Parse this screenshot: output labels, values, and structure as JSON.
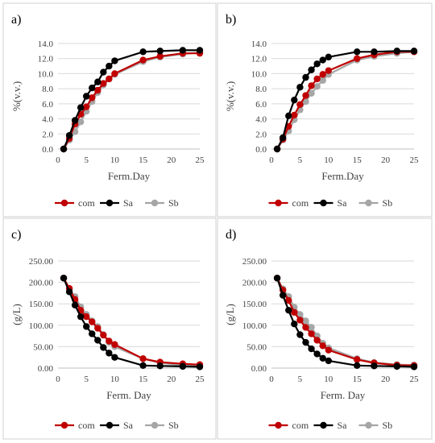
{
  "chart_data": [
    {
      "type": "line",
      "panel_label": "a)",
      "xlabel": "Ferm.Day",
      "ylabel": "%(v.v.)",
      "xlim": [
        0,
        25
      ],
      "ylim": [
        0,
        14
      ],
      "xticks": [
        0,
        5,
        10,
        15,
        20,
        25
      ],
      "yticks": [
        0,
        2,
        4,
        6,
        8,
        10,
        12,
        14
      ],
      "ytick_labels": [
        "0.0",
        "2.0",
        "4.0",
        "6.0",
        "8.0",
        "10.0",
        "12.0",
        "14.0"
      ],
      "grid": "horizontal",
      "legend": "bottom",
      "series": [
        {
          "name": "com",
          "color": "#c00000",
          "x": [
            1,
            2,
            3,
            4,
            5,
            6,
            7,
            8,
            9,
            10,
            15,
            18,
            22,
            25
          ],
          "y": [
            0,
            1.4,
            3.3,
            4.6,
            5.6,
            6.8,
            7.8,
            8.7,
            9.3,
            10.0,
            11.8,
            12.3,
            12.7,
            12.7
          ]
        },
        {
          "name": "Sa",
          "color": "#000000",
          "x": [
            1,
            2,
            3,
            4,
            5,
            6,
            7,
            8,
            9,
            10,
            15,
            18,
            22,
            25
          ],
          "y": [
            0,
            1.8,
            3.8,
            5.5,
            7.0,
            8.1,
            8.9,
            10.2,
            11.0,
            11.7,
            12.9,
            13.0,
            13.1,
            13.1
          ]
        },
        {
          "name": "Sb",
          "color": "#a6a6a6",
          "x": [
            1,
            2,
            3,
            4,
            5,
            6,
            7,
            8,
            9,
            10,
            15,
            18,
            22,
            25
          ],
          "y": [
            0,
            1.2,
            2.3,
            3.6,
            5.0,
            6.3,
            7.5,
            8.5,
            9.3,
            9.9,
            11.6,
            12.2,
            12.6,
            12.8
          ]
        }
      ]
    },
    {
      "type": "line",
      "panel_label": "b)",
      "xlabel": "Ferm.Day",
      "ylabel": "%(v.v.)",
      "xlim": [
        0,
        25
      ],
      "ylim": [
        0,
        14
      ],
      "xticks": [
        0,
        5,
        10,
        15,
        20,
        25
      ],
      "yticks": [
        0,
        2,
        4,
        6,
        8,
        10,
        12,
        14
      ],
      "ytick_labels": [
        "0.0",
        "2.0",
        "4.0",
        "6.0",
        "8.0",
        "10.0",
        "12.0",
        "14.0"
      ],
      "grid": "horizontal",
      "legend": "bottom",
      "series": [
        {
          "name": "com",
          "color": "#c00000",
          "x": [
            1,
            2,
            3,
            4,
            5,
            6,
            7,
            8,
            9,
            10,
            15,
            18,
            22,
            25
          ],
          "y": [
            0,
            1.3,
            3.0,
            4.5,
            5.9,
            7.1,
            8.4,
            9.3,
            9.9,
            10.4,
            12.0,
            12.5,
            12.9,
            12.9
          ]
        },
        {
          "name": "Sa",
          "color": "#000000",
          "x": [
            1,
            2,
            3,
            4,
            5,
            6,
            7,
            8,
            9,
            10,
            15,
            18,
            22,
            25
          ],
          "y": [
            0,
            1.5,
            4.4,
            6.5,
            8.2,
            9.5,
            10.5,
            11.3,
            11.8,
            12.2,
            12.9,
            12.9,
            13.0,
            13.0
          ]
        },
        {
          "name": "Sb",
          "color": "#a6a6a6",
          "x": [
            1,
            2,
            3,
            4,
            5,
            6,
            7,
            8,
            9,
            10,
            15,
            18,
            22,
            25
          ],
          "y": [
            0,
            1.2,
            2.4,
            3.9,
            5.2,
            6.3,
            7.4,
            8.3,
            9.1,
            9.9,
            11.8,
            12.3,
            12.7,
            12.9
          ]
        }
      ]
    },
    {
      "type": "line",
      "panel_label": "c)",
      "xlabel": "Ferm. Day",
      "ylabel": "(g/L)",
      "xlim": [
        0,
        25
      ],
      "ylim": [
        0,
        250
      ],
      "xticks": [
        0,
        5,
        10,
        15,
        20,
        25
      ],
      "yticks": [
        0,
        50,
        100,
        150,
        200,
        250
      ],
      "ytick_labels": [
        "0.00",
        "50.00",
        "100.00",
        "150.00",
        "200.00",
        "250.00"
      ],
      "grid": "horizontal",
      "legend": "bottom",
      "series": [
        {
          "name": "com",
          "color": "#c00000",
          "x": [
            1,
            2,
            3,
            4,
            5,
            6,
            7,
            8,
            9,
            10,
            15,
            18,
            22,
            25
          ],
          "y": [
            210,
            186,
            160,
            135,
            120,
            108,
            93,
            77,
            63,
            55,
            22,
            14,
            10,
            8
          ]
        },
        {
          "name": "Sa",
          "color": "#000000",
          "x": [
            1,
            2,
            3,
            4,
            5,
            6,
            7,
            8,
            9,
            10,
            15,
            18,
            22,
            25
          ],
          "y": [
            210,
            178,
            147,
            120,
            97,
            80,
            65,
            48,
            35,
            25,
            6,
            5,
            4,
            3
          ]
        },
        {
          "name": "Sb",
          "color": "#a6a6a6",
          "x": [
            1,
            2,
            3,
            4,
            5,
            6,
            7,
            8,
            9,
            10,
            15,
            18,
            22,
            25
          ],
          "y": [
            210,
            183,
            167,
            143,
            125,
            110,
            97,
            78,
            60,
            50,
            22,
            12,
            7,
            6
          ]
        }
      ]
    },
    {
      "type": "line",
      "panel_label": "d)",
      "xlabel": "Ferm. Day",
      "ylabel": "(g/L)",
      "xlim": [
        0,
        25
      ],
      "ylim": [
        0,
        250
      ],
      "xticks": [
        0,
        5,
        10,
        15,
        20,
        25
      ],
      "yticks": [
        0,
        50,
        100,
        150,
        200,
        250
      ],
      "ytick_labels": [
        "0.00",
        "50.00",
        "100.00",
        "150.00",
        "200.00",
        "250.00"
      ],
      "grid": "horizontal",
      "legend": "bottom",
      "series": [
        {
          "name": "com",
          "color": "#c00000",
          "x": [
            1,
            2,
            3,
            4,
            5,
            6,
            7,
            8,
            9,
            10,
            15,
            18,
            22,
            25
          ],
          "y": [
            210,
            182,
            158,
            130,
            112,
            95,
            80,
            65,
            52,
            42,
            20,
            12,
            7,
            6
          ]
        },
        {
          "name": "Sa",
          "color": "#000000",
          "x": [
            1,
            2,
            3,
            4,
            5,
            6,
            7,
            8,
            9,
            10,
            15,
            18,
            22,
            25
          ],
          "y": [
            210,
            170,
            135,
            103,
            78,
            60,
            45,
            33,
            23,
            17,
            6,
            5,
            4,
            3
          ]
        },
        {
          "name": "Sb",
          "color": "#a6a6a6",
          "x": [
            1,
            2,
            3,
            4,
            5,
            6,
            7,
            8,
            9,
            10,
            15,
            18,
            22,
            25
          ],
          "y": [
            210,
            185,
            167,
            142,
            125,
            110,
            95,
            75,
            58,
            47,
            22,
            13,
            8,
            7
          ]
        }
      ]
    }
  ]
}
